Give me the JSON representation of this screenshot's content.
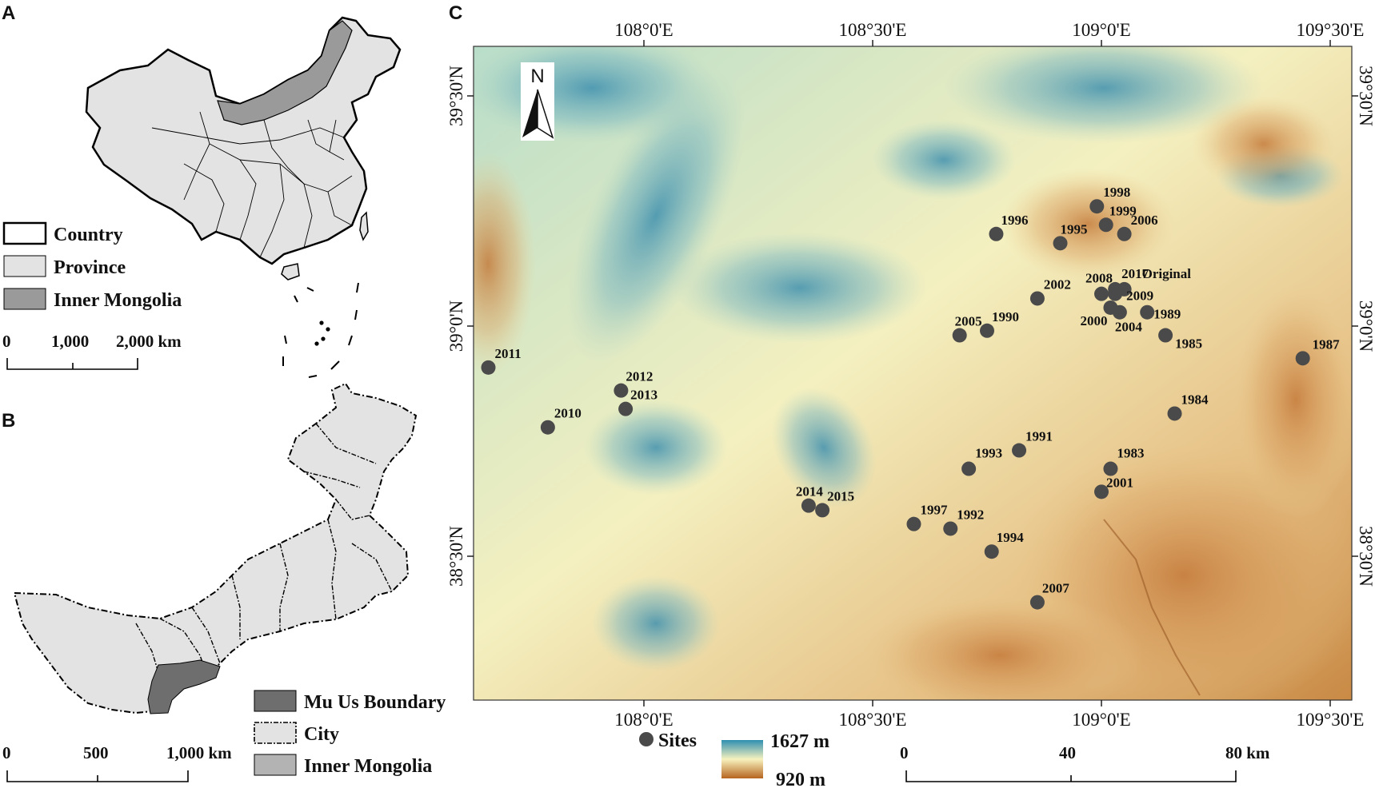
{
  "panels": {
    "a": {
      "letter": "A"
    },
    "b": {
      "letter": "B"
    },
    "c": {
      "letter": "C"
    }
  },
  "panel_a": {
    "legend": [
      {
        "label": "Country",
        "fill": "#ffffff"
      },
      {
        "label": "Province",
        "fill": "#e3e3e3"
      },
      {
        "label": "Inner Mongolia",
        "fill": "#9a9a9a"
      }
    ],
    "scale": {
      "ticks": [
        "0",
        "1,000",
        "2,000 km"
      ]
    }
  },
  "panel_b": {
    "legend": [
      {
        "label": "Mu Us Boundary",
        "fill": "#6e6e6e"
      },
      {
        "label": "City",
        "fill": "#e3e3e3"
      },
      {
        "label": "Inner Mongolia",
        "fill": "#b3b3b3"
      }
    ],
    "scale": {
      "ticks": [
        "0",
        "500",
        "1,000 km"
      ]
    }
  },
  "panel_c": {
    "north_arrow": "N",
    "lon_labels": [
      "108°0'E",
      "108°30'E",
      "109°0'E",
      "109°30'E"
    ],
    "lat_labels": [
      "39°30'N",
      "39°0'N",
      "38°30'N"
    ],
    "legend": {
      "sites_label": "Sites",
      "elev_max": "1627 m",
      "elev_min": "920 m",
      "elev_colors": [
        "#2f8fb0",
        "#f7f2be",
        "#b6641f"
      ]
    },
    "scale": {
      "ticks": [
        "0",
        "40",
        "80 km"
      ]
    },
    "sites": [
      {
        "name": "1998",
        "lon": 108.99,
        "lat": 39.26
      },
      {
        "name": "1999",
        "lon": 109.01,
        "lat": 39.22
      },
      {
        "name": "2006",
        "lon": 109.05,
        "lat": 39.2
      },
      {
        "name": "1996",
        "lon": 108.77,
        "lat": 39.2
      },
      {
        "name": "1995",
        "lon": 108.91,
        "lat": 39.18
      },
      {
        "name": "2002",
        "lon": 108.86,
        "lat": 39.06
      },
      {
        "name": "2008",
        "lon": 109.0,
        "lat": 39.07
      },
      {
        "name": "2017",
        "lon": 109.03,
        "lat": 39.08
      },
      {
        "name": "Original",
        "lon": 109.05,
        "lat": 39.08
      },
      {
        "name": "2009",
        "lon": 109.03,
        "lat": 39.07
      },
      {
        "name": "2000",
        "lon": 109.02,
        "lat": 39.04
      },
      {
        "name": "2004",
        "lon": 109.04,
        "lat": 39.03
      },
      {
        "name": "1989",
        "lon": 109.1,
        "lat": 39.03
      },
      {
        "name": "1985",
        "lon": 109.14,
        "lat": 38.98
      },
      {
        "name": "2005",
        "lon": 108.69,
        "lat": 38.98
      },
      {
        "name": "1990",
        "lon": 108.75,
        "lat": 38.99
      },
      {
        "name": "1987",
        "lon": 109.44,
        "lat": 38.93
      },
      {
        "name": "2011",
        "lon": 107.66,
        "lat": 38.91
      },
      {
        "name": "2012",
        "lon": 107.95,
        "lat": 38.86
      },
      {
        "name": "2013",
        "lon": 107.96,
        "lat": 38.82
      },
      {
        "name": "2010",
        "lon": 107.79,
        "lat": 38.78
      },
      {
        "name": "1984",
        "lon": 109.16,
        "lat": 38.81
      },
      {
        "name": "1991",
        "lon": 108.82,
        "lat": 38.73
      },
      {
        "name": "1993",
        "lon": 108.71,
        "lat": 38.69
      },
      {
        "name": "1983",
        "lon": 109.02,
        "lat": 38.69
      },
      {
        "name": "2001",
        "lon": 109.0,
        "lat": 38.64
      },
      {
        "name": "2014",
        "lon": 108.36,
        "lat": 38.61
      },
      {
        "name": "2015",
        "lon": 108.39,
        "lat": 38.6
      },
      {
        "name": "1997",
        "lon": 108.59,
        "lat": 38.57
      },
      {
        "name": "1992",
        "lon": 108.67,
        "lat": 38.56
      },
      {
        "name": "1994",
        "lon": 108.76,
        "lat": 38.51
      },
      {
        "name": "2007",
        "lon": 108.86,
        "lat": 38.4
      }
    ]
  }
}
